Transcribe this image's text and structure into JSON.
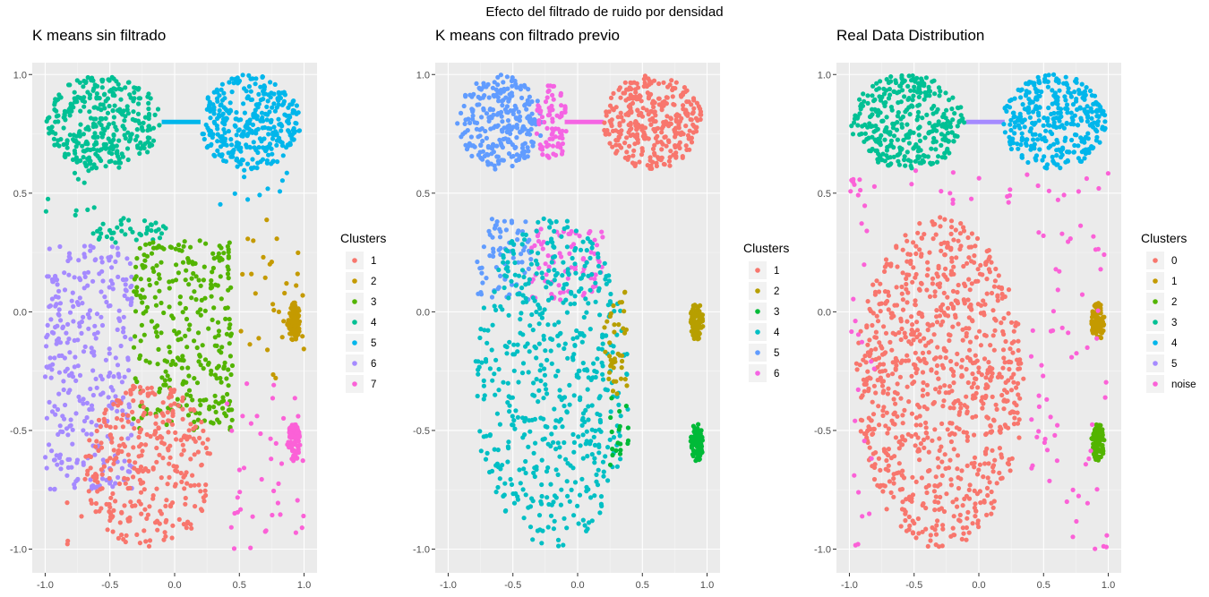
{
  "suptitle": "Efecto del filtrado de ruido por densidad",
  "chart_data": [
    {
      "type": "scatter",
      "title": "K means sin filtrado",
      "xlabel": "",
      "ylabel": "",
      "xlim": [
        -1.1,
        1.1
      ],
      "ylim": [
        -1.1,
        1.05
      ],
      "x_ticks": [
        "-1.0",
        "-0.5",
        "0.0",
        "0.5",
        "1.0"
      ],
      "y_ticks": [
        "1.0",
        "0.5",
        "0.0",
        "-0.5",
        "-1.0"
      ],
      "grid": true,
      "legend": {
        "title": "Clusters",
        "placement": "right",
        "entries": [
          {
            "label": "1",
            "color": "#F8766D"
          },
          {
            "label": "2",
            "color": "#C49A00"
          },
          {
            "label": "3",
            "color": "#53B400"
          },
          {
            "label": "4",
            "color": "#00C094"
          },
          {
            "label": "5",
            "color": "#00B6EB"
          },
          {
            "label": "6",
            "color": "#A58AFF"
          },
          {
            "label": "7",
            "color": "#FB61D7"
          }
        ]
      },
      "series": [
        {
          "name": "4",
          "color": "#00C094",
          "shapes": [
            {
              "kind": "ellipse",
              "cx": -0.55,
              "cy": 0.8,
              "rx": 0.44,
              "ry": 0.2,
              "n": 340
            },
            {
              "kind": "ellipse",
              "cx": -0.35,
              "cy": 0.34,
              "rx": 0.3,
              "ry": 0.06,
              "n": 40
            },
            {
              "kind": "box",
              "x0": -1.0,
              "x1": -0.55,
              "y0": 0.4,
              "y1": 0.62,
              "n": 10
            }
          ]
        },
        {
          "name": "5",
          "color": "#00B6EB",
          "shapes": [
            {
              "kind": "ellipse",
              "cx": 0.58,
              "cy": 0.8,
              "rx": 0.4,
              "ry": 0.2,
              "n": 340
            },
            {
              "kind": "box",
              "x0": 0.35,
              "x1": 1.0,
              "y0": 0.45,
              "y1": 0.62,
              "n": 12
            }
          ]
        },
        {
          "name": "6",
          "color": "#A58AFF",
          "shapes": [
            {
              "kind": "box",
              "x0": -1.0,
              "x1": -0.32,
              "y0": -0.75,
              "y1": 0.28,
              "n": 330
            }
          ]
        },
        {
          "name": "3",
          "color": "#53B400",
          "shapes": [
            {
              "kind": "box",
              "x0": -0.32,
              "x1": 0.45,
              "y0": -0.5,
              "y1": 0.3,
              "n": 310
            }
          ]
        },
        {
          "name": "1",
          "color": "#F8766D",
          "shapes": [
            {
              "kind": "ellipse",
              "cx": -0.2,
              "cy": -0.65,
              "rx": 0.5,
              "ry": 0.35,
              "n": 320
            },
            {
              "kind": "box",
              "x0": -1.0,
              "x1": -0.7,
              "y0": -1.0,
              "y1": -0.8,
              "n": 4
            }
          ]
        },
        {
          "name": "2",
          "color": "#C49A00",
          "shapes": [
            {
              "kind": "ellipse",
              "cx": 0.92,
              "cy": -0.04,
              "rx": 0.05,
              "ry": 0.08,
              "n": 90
            },
            {
              "kind": "box",
              "x0": 0.5,
              "x1": 1.0,
              "y0": -0.3,
              "y1": 0.4,
              "n": 30
            }
          ]
        },
        {
          "name": "7",
          "color": "#FB61D7",
          "shapes": [
            {
              "kind": "ellipse",
              "cx": 0.92,
              "cy": -0.55,
              "rx": 0.05,
              "ry": 0.08,
              "n": 90
            },
            {
              "kind": "box",
              "x0": 0.4,
              "x1": 1.0,
              "y0": -1.0,
              "y1": -0.3,
              "n": 40
            }
          ]
        }
      ],
      "lines": [
        {
          "color": "#00B6EB",
          "x": [
            -0.1,
            0.2
          ],
          "y": [
            0.8,
            0.8
          ]
        }
      ]
    },
    {
      "type": "scatter",
      "title": "K means con filtrado previo",
      "xlabel": "",
      "ylabel": "",
      "xlim": [
        -1.1,
        1.1
      ],
      "ylim": [
        -1.1,
        1.05
      ],
      "x_ticks": [
        "-1.0",
        "-0.5",
        "0.0",
        "0.5",
        "1.0"
      ],
      "y_ticks": [
        "1.0",
        "0.5",
        "0.0",
        "-0.5",
        "-1.0"
      ],
      "grid": true,
      "legend": {
        "title": "Clusters",
        "placement": "right",
        "entries": [
          {
            "label": "1",
            "color": "#F8766D"
          },
          {
            "label": "2",
            "color": "#B79F00"
          },
          {
            "label": "3",
            "color": "#00BA38"
          },
          {
            "label": "4",
            "color": "#00BFC4"
          },
          {
            "label": "5",
            "color": "#619CFF"
          },
          {
            "label": "6",
            "color": "#F564E3"
          }
        ]
      },
      "series": [
        {
          "name": "5",
          "color": "#619CFF",
          "shapes": [
            {
              "kind": "ellipse",
              "cx": -0.6,
              "cy": 0.8,
              "rx": 0.33,
              "ry": 0.2,
              "n": 260
            },
            {
              "kind": "box",
              "x0": -0.78,
              "x1": -0.36,
              "y0": 0.05,
              "y1": 0.4,
              "n": 70
            }
          ]
        },
        {
          "name": "6",
          "color": "#F564E3",
          "shapes": [
            {
              "kind": "ellipse",
              "cx": -0.2,
              "cy": 0.8,
              "rx": 0.12,
              "ry": 0.18,
              "n": 80
            },
            {
              "kind": "box",
              "x0": -0.36,
              "x1": 0.2,
              "y0": 0.05,
              "y1": 0.35,
              "n": 80
            }
          ]
        },
        {
          "name": "1",
          "color": "#F8766D",
          "shapes": [
            {
              "kind": "ellipse",
              "cx": 0.58,
              "cy": 0.8,
              "rx": 0.38,
              "ry": 0.2,
              "n": 330
            }
          ]
        },
        {
          "name": "4",
          "color": "#00BFC4",
          "shapes": [
            {
              "kind": "ellipse",
              "cx": -0.2,
              "cy": -0.3,
              "rx": 0.6,
              "ry": 0.7,
              "n": 560
            }
          ]
        },
        {
          "name": "2",
          "color": "#B79F00",
          "shapes": [
            {
              "kind": "ellipse",
              "cx": 0.92,
              "cy": -0.04,
              "rx": 0.05,
              "ry": 0.08,
              "n": 90
            },
            {
              "kind": "box",
              "x0": 0.2,
              "x1": 0.4,
              "y0": -0.35,
              "y1": 0.1,
              "n": 40
            }
          ]
        },
        {
          "name": "3",
          "color": "#00BA38",
          "shapes": [
            {
              "kind": "ellipse",
              "cx": 0.92,
              "cy": -0.55,
              "rx": 0.05,
              "ry": 0.08,
              "n": 90
            },
            {
              "kind": "box",
              "x0": 0.25,
              "x1": 0.4,
              "y0": -0.65,
              "y1": -0.35,
              "n": 18
            }
          ]
        }
      ],
      "lines": [
        {
          "color": "#F564E3",
          "x": [
            -0.1,
            0.2
          ],
          "y": [
            0.8,
            0.8
          ]
        }
      ]
    },
    {
      "type": "scatter",
      "title": "Real Data Distribution",
      "xlabel": "",
      "ylabel": "",
      "xlim": [
        -1.1,
        1.1
      ],
      "ylim": [
        -1.1,
        1.05
      ],
      "x_ticks": [
        "-1.0",
        "-0.5",
        "0.0",
        "0.5",
        "1.0"
      ],
      "y_ticks": [
        "1.0",
        "0.5",
        "0.0",
        "-0.5",
        "-1.0"
      ],
      "grid": true,
      "legend": {
        "title": "Clusters",
        "placement": "right",
        "entries": [
          {
            "label": "0",
            "color": "#F8766D"
          },
          {
            "label": "1",
            "color": "#C49A00"
          },
          {
            "label": "2",
            "color": "#53B400"
          },
          {
            "label": "3",
            "color": "#00C094"
          },
          {
            "label": "4",
            "color": "#00B6EB"
          },
          {
            "label": "5",
            "color": "#A58AFF"
          },
          {
            "label": "noise",
            "color": "#FB61D7"
          }
        ]
      },
      "series": [
        {
          "name": "3",
          "color": "#00C094",
          "shapes": [
            {
              "kind": "ellipse",
              "cx": -0.55,
              "cy": 0.8,
              "rx": 0.44,
              "ry": 0.2,
              "n": 340
            }
          ]
        },
        {
          "name": "4",
          "color": "#00B6EB",
          "shapes": [
            {
              "kind": "ellipse",
              "cx": 0.58,
              "cy": 0.8,
              "rx": 0.4,
              "ry": 0.2,
              "n": 340
            }
          ]
        },
        {
          "name": "0",
          "color": "#F8766D",
          "shapes": [
            {
              "kind": "ellipse",
              "cx": -0.3,
              "cy": -0.3,
              "rx": 0.65,
              "ry": 0.7,
              "n": 900
            }
          ]
        },
        {
          "name": "1",
          "color": "#C49A00",
          "shapes": [
            {
              "kind": "ellipse",
              "cx": 0.92,
              "cy": -0.04,
              "rx": 0.05,
              "ry": 0.08,
              "n": 90
            }
          ]
        },
        {
          "name": "2",
          "color": "#53B400",
          "shapes": [
            {
              "kind": "ellipse",
              "cx": 0.92,
              "cy": -0.55,
              "rx": 0.05,
              "ry": 0.08,
              "n": 90
            }
          ]
        },
        {
          "name": "noise",
          "color": "#FB61D7",
          "shapes": [
            {
              "kind": "box",
              "x0": 0.4,
              "x1": 1.0,
              "y0": -1.0,
              "y1": 0.6,
              "n": 70
            },
            {
              "kind": "box",
              "x0": -1.0,
              "x1": -0.8,
              "y0": -1.0,
              "y1": 0.6,
              "n": 30
            },
            {
              "kind": "box",
              "x0": -0.8,
              "x1": 0.4,
              "y0": 0.45,
              "y1": 0.6,
              "n": 14
            }
          ]
        }
      ],
      "lines": [
        {
          "color": "#A58AFF",
          "x": [
            -0.1,
            0.2
          ],
          "y": [
            0.8,
            0.8
          ]
        }
      ]
    }
  ]
}
